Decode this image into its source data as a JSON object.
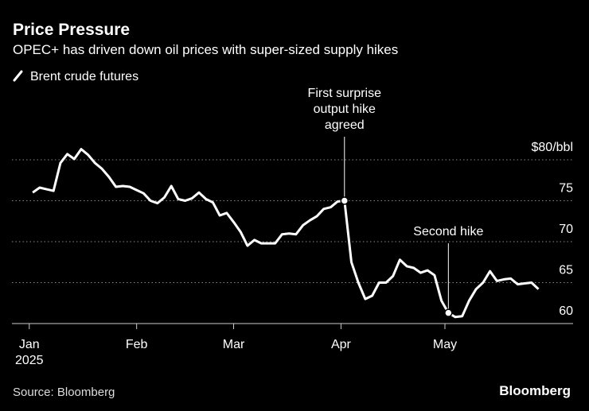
{
  "chart_data": {
    "type": "line",
    "title": "Price Pressure",
    "subtitle": "OPEC+ has driven down oil prices with super-sized supply hikes",
    "source": "Source: Bloomberg",
    "brand": "Bloomberg",
    "x": [
      "2025-01-02",
      "2025-01-04",
      "2025-01-06",
      "2025-01-08",
      "2025-01-10",
      "2025-01-12",
      "2025-01-14",
      "2025-01-16",
      "2025-01-18",
      "2025-01-20",
      "2025-01-22",
      "2025-01-24",
      "2025-01-26",
      "2025-01-28",
      "2025-01-30",
      "2025-02-01",
      "2025-02-03",
      "2025-02-05",
      "2025-02-07",
      "2025-02-09",
      "2025-02-11",
      "2025-02-13",
      "2025-02-15",
      "2025-02-17",
      "2025-02-19",
      "2025-02-21",
      "2025-02-23",
      "2025-02-25",
      "2025-02-27",
      "2025-03-01",
      "2025-03-03",
      "2025-03-05",
      "2025-03-07",
      "2025-03-09",
      "2025-03-11",
      "2025-03-13",
      "2025-03-15",
      "2025-03-17",
      "2025-03-19",
      "2025-03-21",
      "2025-03-23",
      "2025-03-25",
      "2025-03-27",
      "2025-03-29",
      "2025-03-31",
      "2025-04-02",
      "2025-04-04",
      "2025-04-06",
      "2025-04-08",
      "2025-04-10",
      "2025-04-12",
      "2025-04-14",
      "2025-04-16",
      "2025-04-18",
      "2025-04-20",
      "2025-04-22",
      "2025-04-24",
      "2025-04-26",
      "2025-04-28",
      "2025-04-30",
      "2025-05-02",
      "2025-05-04",
      "2025-05-06",
      "2025-05-08",
      "2025-05-10",
      "2025-05-12",
      "2025-05-14",
      "2025-05-16",
      "2025-05-18",
      "2025-05-20",
      "2025-05-22",
      "2025-05-24",
      "2025-05-26",
      "2025-05-28"
    ],
    "series": [
      {
        "name": "Brent crude futures",
        "color": "#ffffff",
        "values": [
          76.0,
          76.6,
          76.4,
          76.2,
          79.6,
          80.7,
          80.1,
          81.3,
          80.6,
          79.6,
          78.9,
          77.9,
          76.7,
          76.8,
          76.7,
          76.3,
          75.9,
          75.0,
          74.7,
          75.4,
          76.8,
          75.2,
          75.0,
          75.3,
          76.0,
          75.2,
          74.8,
          73.2,
          73.5,
          72.4,
          71.2,
          69.5,
          70.2,
          69.8,
          69.8,
          69.8,
          70.9,
          71.0,
          70.9,
          72.0,
          72.6,
          73.1,
          74.0,
          74.2,
          74.9,
          75.0,
          67.5,
          65.0,
          63.0,
          63.4,
          65.0,
          65.0,
          65.8,
          67.8,
          67.0,
          66.8,
          66.2,
          66.5,
          65.9,
          62.8,
          61.3,
          60.8,
          60.9,
          62.8,
          64.2,
          65.0,
          66.4,
          65.2,
          65.4,
          65.5,
          64.8,
          64.9,
          65.0,
          64.2
        ]
      }
    ],
    "xlim": [
      "2024-12-27",
      "2025-06-07"
    ],
    "xticks": [
      {
        "value": "2025-01-01",
        "label": "Jan"
      },
      {
        "value": "2025-02-01",
        "label": "Feb"
      },
      {
        "value": "2025-03-01",
        "label": "Mar"
      },
      {
        "value": "2025-04-01",
        "label": "Apr"
      },
      {
        "value": "2025-05-01",
        "label": "May"
      }
    ],
    "x_year_label": "2025",
    "ylim": [
      60,
      85
    ],
    "yticks": [
      60,
      65,
      70,
      75,
      {
        "value": 80,
        "label": "$80/bbl"
      }
    ],
    "grid": true,
    "annotations": [
      {
        "x": "2025-04-02",
        "lines": [
          "First surprise",
          "output hike",
          "agreed"
        ]
      },
      {
        "x": "2025-05-02",
        "lines": [
          "Second hike"
        ]
      }
    ]
  }
}
